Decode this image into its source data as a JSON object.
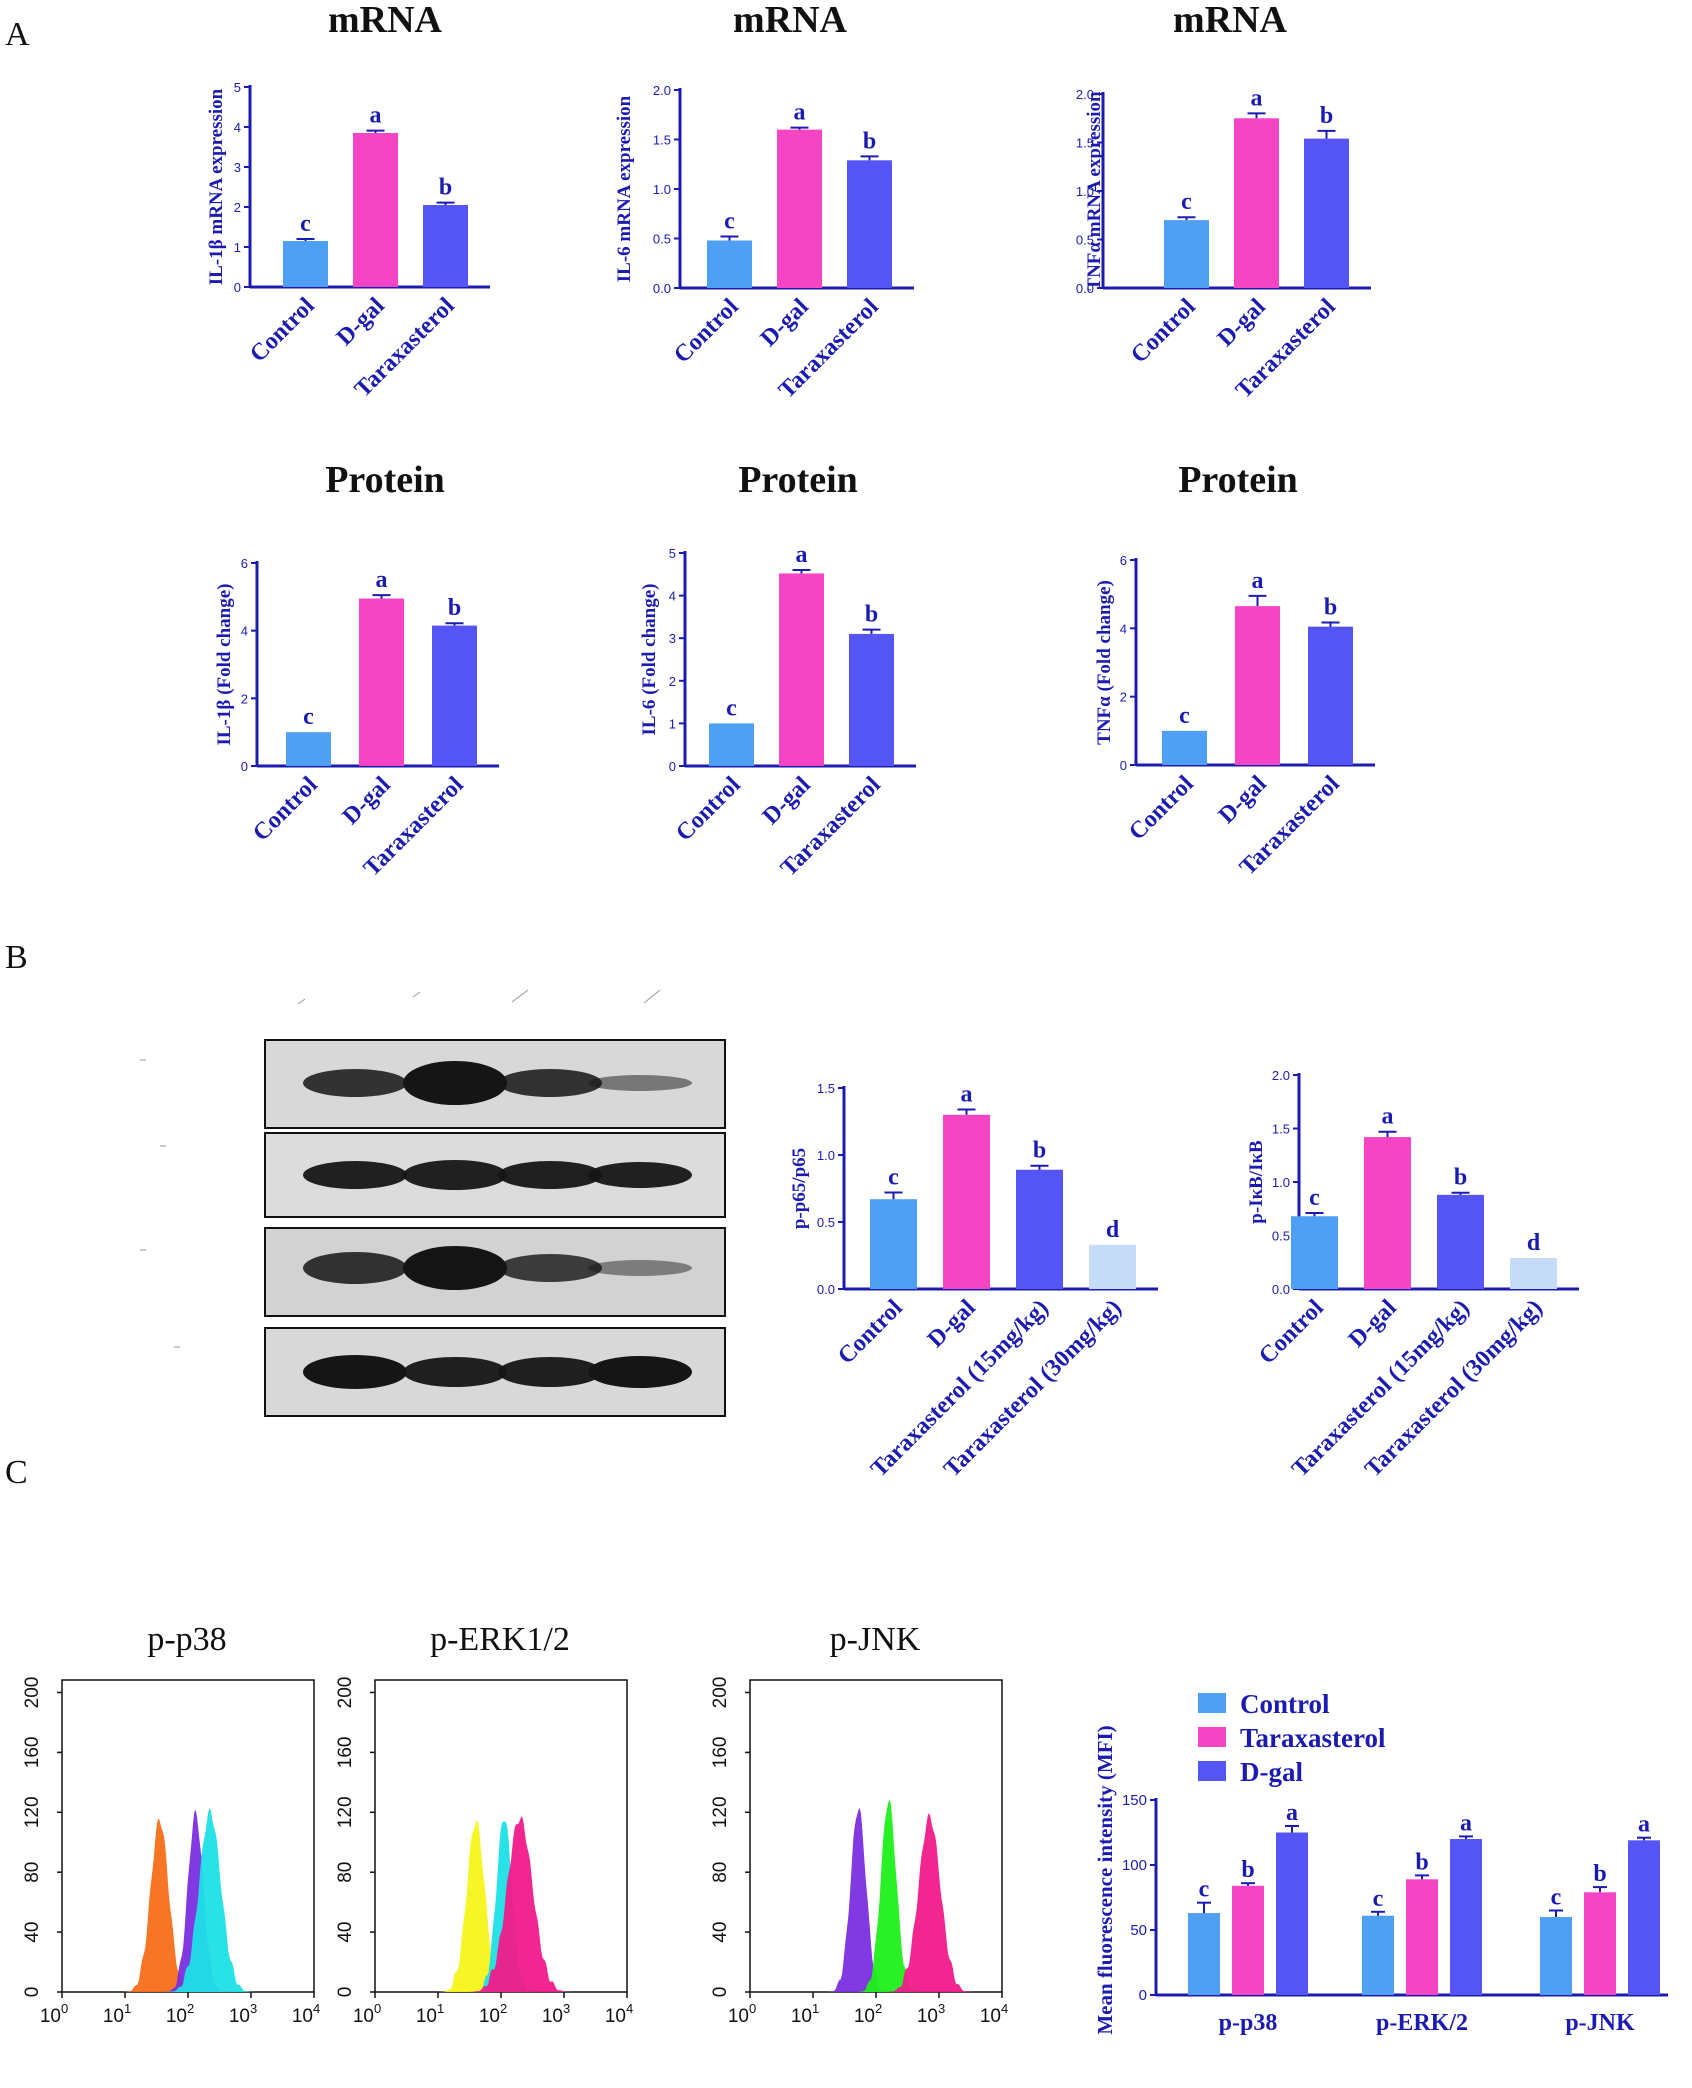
{
  "panel_labels": {
    "a": "A",
    "b": "B",
    "c": "C"
  },
  "colors": {
    "control": "#4f9ff5",
    "dgal": "#f545c5",
    "taraxasterol": "#5555f5",
    "tarax30": "#c6dcf8",
    "axis": "#1b1bb0",
    "hist_orange": "#f56f1a",
    "hist_purple": "#7a2ee0",
    "hist_cyan": "#1ee0e6",
    "hist_yellow": "#f5f51a",
    "hist_pink": "#f01a8a",
    "hist_green": "#1ef01a"
  },
  "chart_data": [
    {
      "type": "bar",
      "title": "mRNA",
      "ylabel": "IL-1β mRNA expression",
      "categories": [
        "Control",
        "D-gal",
        "Taraxasterol"
      ],
      "values": [
        1.15,
        3.85,
        2.05
      ],
      "errors": [
        0.05,
        0.06,
        0.06
      ],
      "significance": [
        "c",
        "a",
        "b"
      ],
      "ylim": [
        0,
        5
      ],
      "yticks": [
        "0",
        "1",
        "2",
        "3",
        "4",
        "5"
      ]
    },
    {
      "type": "bar",
      "title": "mRNA",
      "ylabel": "IL-6 mRNA expression",
      "categories": [
        "Control",
        "D-gal",
        "Taraxasterol"
      ],
      "values": [
        0.48,
        1.6,
        1.29
      ],
      "errors": [
        0.04,
        0.02,
        0.04
      ],
      "significance": [
        "c",
        "a",
        "b"
      ],
      "ylim": [
        0,
        2.0
      ],
      "yticks": [
        "0.0",
        "0.5",
        "1.0",
        "1.5",
        "2.0"
      ]
    },
    {
      "type": "bar",
      "title": "mRNA",
      "ylabel": "TNFα mRNA expression",
      "categories": [
        "Control",
        "D-gal",
        "Taraxasterol"
      ],
      "values": [
        0.7,
        1.75,
        1.54
      ],
      "errors": [
        0.03,
        0.05,
        0.08
      ],
      "significance": [
        "c",
        "a",
        "b"
      ],
      "ylim": [
        0,
        2.0
      ],
      "yticks": [
        "0.0",
        "0.5",
        "1.0",
        "1.5",
        "2.0"
      ]
    },
    {
      "type": "bar",
      "title": "Protein",
      "ylabel": "IL-1β (Fold change)",
      "categories": [
        "Control",
        "D-gal",
        "Taraxasterol"
      ],
      "values": [
        1.0,
        4.95,
        4.15
      ],
      "errors": [
        0.0,
        0.1,
        0.07
      ],
      "significance": [
        "c",
        "a",
        "b"
      ],
      "ylim": [
        0,
        6
      ],
      "yticks": [
        "0",
        "2",
        "4",
        "6"
      ]
    },
    {
      "type": "bar",
      "title": "Protein",
      "ylabel": "IL-6 (Fold change)",
      "categories": [
        "Control",
        "D-gal",
        "Taraxasterol"
      ],
      "values": [
        1.0,
        4.52,
        3.1
      ],
      "errors": [
        0.0,
        0.08,
        0.1
      ],
      "significance": [
        "c",
        "a",
        "b"
      ],
      "ylim": [
        0,
        5
      ],
      "yticks": [
        "0",
        "1",
        "2",
        "3",
        "4",
        "5"
      ]
    },
    {
      "type": "bar",
      "title": "Protein",
      "ylabel": "TNFα (Fold change)",
      "categories": [
        "Control",
        "D-gal",
        "Taraxasterol"
      ],
      "values": [
        1.0,
        4.65,
        4.05
      ],
      "errors": [
        0.0,
        0.3,
        0.12
      ],
      "significance": [
        "c",
        "a",
        "b"
      ],
      "ylim": [
        0,
        6
      ],
      "yticks": [
        "0",
        "2",
        "4",
        "6"
      ]
    },
    {
      "type": "bar",
      "title": "",
      "ylabel": "p-p65/p65",
      "categories": [
        "Control",
        "D-gal",
        "Taraxasterol (15mg/kg)",
        "Taraxasterol (30mg/kg)"
      ],
      "values": [
        0.67,
        1.3,
        0.89,
        0.33
      ],
      "errors": [
        0.05,
        0.04,
        0.03,
        0.0
      ],
      "significance": [
        "c",
        "a",
        "b",
        "d"
      ],
      "ylim": [
        0,
        1.5
      ],
      "yticks": [
        "0.0",
        "0.5",
        "1.0",
        "1.5"
      ]
    },
    {
      "type": "bar",
      "title": "",
      "ylabel": "p-IκB/IκB",
      "categories": [
        "Control",
        "D-gal",
        "Taraxasterol (15mg/kg)",
        "Taraxasterol (30mg/kg)"
      ],
      "values": [
        0.68,
        1.42,
        0.88,
        0.29
      ],
      "errors": [
        0.03,
        0.05,
        0.02,
        0.0
      ],
      "significance": [
        "c",
        "a",
        "b",
        "d"
      ],
      "ylim": [
        0,
        2.0
      ],
      "yticks": [
        "0.0",
        "0.5",
        "1.0",
        "1.5",
        "2.0"
      ]
    },
    {
      "type": "bar",
      "title": "",
      "ylabel": "Mean fluorescence intensity (MFI)",
      "categories": [
        "p-p38",
        "p-ERK/2",
        "p-JNK"
      ],
      "series": [
        {
          "name": "Control",
          "values": [
            63,
            61,
            60
          ],
          "errors": [
            8,
            3,
            5
          ],
          "significance": [
            "c",
            "c",
            "c"
          ]
        },
        {
          "name": "Taraxasterol",
          "values": [
            84,
            89,
            79
          ],
          "errors": [
            2,
            3,
            4
          ],
          "significance": [
            "b",
            "b",
            "b"
          ]
        },
        {
          "name": "D-gal",
          "values": [
            125,
            120,
            119
          ],
          "errors": [
            5,
            2,
            2
          ],
          "significance": [
            "a",
            "a",
            "a"
          ]
        }
      ],
      "ylim": [
        0,
        150
      ],
      "yticks": [
        "0",
        "50",
        "100",
        "150"
      ]
    }
  ],
  "flow": [
    {
      "title": "p-p38",
      "peaks": [
        {
          "center": 1.55,
          "width": 0.14,
          "height": 112,
          "color": "hist_orange"
        },
        {
          "center": 2.12,
          "width": 0.12,
          "height": 116,
          "color": "hist_purple"
        },
        {
          "center": 2.35,
          "width": 0.17,
          "height": 117,
          "color": "hist_cyan"
        }
      ]
    },
    {
      "title": "p-ERK1/2",
      "peaks": [
        {
          "center": 1.6,
          "width": 0.14,
          "height": 111,
          "color": "hist_yellow"
        },
        {
          "center": 2.05,
          "width": 0.12,
          "height": 114,
          "color": "hist_cyan"
        },
        {
          "center": 2.3,
          "width": 0.2,
          "height": 113,
          "color": "hist_pink"
        }
      ]
    },
    {
      "title": "p-JNK",
      "peaks": [
        {
          "center": 1.72,
          "width": 0.12,
          "height": 120,
          "color": "hist_purple"
        },
        {
          "center": 2.2,
          "width": 0.12,
          "height": 125,
          "color": "hist_green"
        },
        {
          "center": 2.85,
          "width": 0.17,
          "height": 114,
          "color": "hist_pink"
        }
      ]
    }
  ],
  "flow_axes": {
    "yticks": [
      "0",
      "40",
      "80",
      "120",
      "160",
      "200"
    ],
    "xtick_base": "10",
    "xtick_exps": [
      "0",
      "1",
      "2",
      "3",
      "4"
    ],
    "ymax": 200
  }
}
